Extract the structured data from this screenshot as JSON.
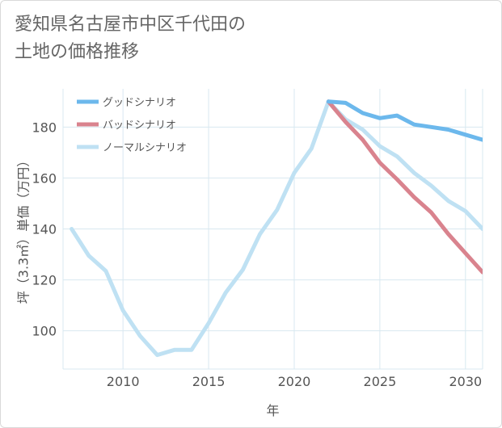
{
  "title": "愛知県名古屋市中区千代田の\n土地の価格推移",
  "chart_data": {
    "type": "line",
    "title": "愛知県名古屋市中区千代田の土地の価格推移",
    "xlabel": "年",
    "ylabel": "坪（3.3㎡）単価（万円）",
    "xlim": [
      2006.5,
      2031
    ],
    "ylim": [
      85,
      195
    ],
    "xticks": [
      2010,
      2015,
      2020,
      2025,
      2030
    ],
    "yticks": [
      100,
      120,
      140,
      160,
      180
    ],
    "grid": true,
    "legend_position": "top-left",
    "series": [
      {
        "name": "グッドシナリオ",
        "color": "#6cb8ec",
        "x": [
          2022,
          2023,
          2024,
          2025,
          2026,
          2027,
          2028,
          2029,
          2030,
          2031
        ],
        "y": [
          190,
          189.5,
          185.5,
          183.5,
          184.5,
          181,
          180,
          179,
          177,
          175
        ]
      },
      {
        "name": "バッドシナリオ",
        "color": "#d9838e",
        "x": [
          2022,
          2023,
          2024,
          2025,
          2026,
          2027,
          2028,
          2029,
          2030,
          2031
        ],
        "y": [
          190,
          182,
          175,
          166,
          159.5,
          152.5,
          146.5,
          138,
          130.5,
          123
        ]
      },
      {
        "name": "ノーマルシナリオ",
        "color": "#bfe1f3",
        "x": [
          2007,
          2008,
          2009,
          2010,
          2011,
          2012,
          2013,
          2014,
          2015,
          2016,
          2017,
          2018,
          2019,
          2020,
          2021,
          2022,
          2023,
          2024,
          2025,
          2026,
          2027,
          2028,
          2029,
          2030,
          2031
        ],
        "y": [
          140,
          129.5,
          123.5,
          108,
          98,
          90.5,
          92.5,
          92.5,
          103,
          115,
          124,
          138,
          147.5,
          162,
          171.5,
          190,
          183,
          179,
          172.5,
          168.5,
          162,
          157,
          151,
          147,
          140
        ]
      }
    ]
  }
}
